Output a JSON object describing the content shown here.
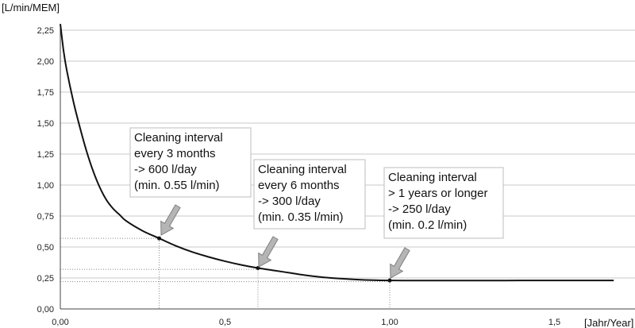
{
  "chart_data": {
    "type": "line",
    "ylabel": "[L/min/MEM]",
    "xlabel": "[Jahr/Year]",
    "xlim": [
      0,
      1.75
    ],
    "ylim": [
      0,
      2.3
    ],
    "grid": "horizontal",
    "y_ticks": [
      "0,00",
      "0,25",
      "0,50",
      "0,75",
      "1,00",
      "1,25",
      "1,50",
      "1,75",
      "2,00",
      "2,25"
    ],
    "x_ticks": [
      "0,00",
      "0,5",
      "1,00",
      "1,5"
    ],
    "series": [
      {
        "points": [
          [
            0.0,
            2.3
          ],
          [
            0.01,
            2.08
          ],
          [
            0.02,
            1.92
          ],
          [
            0.04,
            1.67
          ],
          [
            0.06,
            1.46
          ],
          [
            0.08,
            1.27
          ],
          [
            0.1,
            1.11
          ],
          [
            0.12,
            0.98
          ],
          [
            0.14,
            0.88
          ],
          [
            0.16,
            0.81
          ],
          [
            0.18,
            0.76
          ],
          [
            0.2,
            0.71
          ],
          [
            0.25,
            0.63
          ],
          [
            0.3,
            0.57
          ],
          [
            0.35,
            0.51
          ],
          [
            0.4,
            0.46
          ],
          [
            0.45,
            0.42
          ],
          [
            0.5,
            0.385
          ],
          [
            0.55,
            0.355
          ],
          [
            0.6,
            0.33
          ],
          [
            0.65,
            0.31
          ],
          [
            0.7,
            0.29
          ],
          [
            0.75,
            0.27
          ],
          [
            0.8,
            0.255
          ],
          [
            0.85,
            0.245
          ],
          [
            0.9,
            0.237
          ],
          [
            0.95,
            0.232
          ],
          [
            1.0,
            0.23
          ],
          [
            1.1,
            0.229
          ],
          [
            1.2,
            0.229
          ],
          [
            1.3,
            0.229
          ],
          [
            1.4,
            0.23
          ],
          [
            1.5,
            0.23
          ],
          [
            1.6,
            0.23
          ],
          [
            1.68,
            0.23
          ]
        ]
      }
    ],
    "markers": [
      {
        "x": 0.3,
        "y": 0.57,
        "hy": 0.57
      },
      {
        "x": 0.6,
        "y": 0.33,
        "hy": 0.32
      },
      {
        "x": 1.0,
        "y": 0.23,
        "hy": 0.22
      }
    ],
    "annotations": [
      {
        "lines": [
          "Cleaning interval",
          "every 3 months",
          "-> 600 l/day",
          "(min. 0.55 l/min)"
        ]
      },
      {
        "lines": [
          "Cleaning interval",
          "every 6 months",
          "-> 300 l/day",
          "(min. 0.35 l/min)"
        ]
      },
      {
        "lines": [
          "Cleaning interval",
          "> 1 years or longer",
          "-> 250 l/day",
          "(min. 0.2 l/min)"
        ]
      }
    ]
  }
}
